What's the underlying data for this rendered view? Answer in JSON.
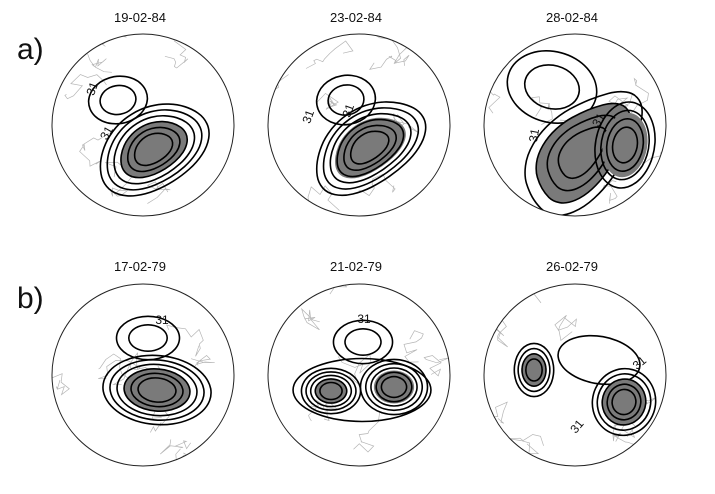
{
  "rows": [
    {
      "label": "a)",
      "dates": [
        "19-02-84",
        "23-02-84",
        "28-02-84"
      ]
    },
    {
      "label": "b)",
      "dates": [
        "17-02-79",
        "21-02-79",
        "26-02-79"
      ]
    }
  ],
  "contour_label": "31",
  "colors": {
    "contour": "#000000",
    "shading": "#7a7a7a",
    "coastline": "#b5b5b5",
    "frame": "#222222"
  },
  "chart_data": {
    "type": "contour",
    "projection": "polar-stereographic",
    "title": "",
    "panels": [
      {
        "row": "a)",
        "date": "19-02-84",
        "contour_value_label": "31"
      },
      {
        "row": "a)",
        "date": "23-02-84",
        "contour_value_label": "31"
      },
      {
        "row": "a)",
        "date": "28-02-84",
        "contour_value_label": "31"
      },
      {
        "row": "b)",
        "date": "17-02-79",
        "contour_value_label": "31"
      },
      {
        "row": "b)",
        "date": "21-02-79",
        "contour_value_label": "31"
      },
      {
        "row": "b)",
        "date": "26-02-79",
        "contour_value_label": "31"
      }
    ]
  }
}
